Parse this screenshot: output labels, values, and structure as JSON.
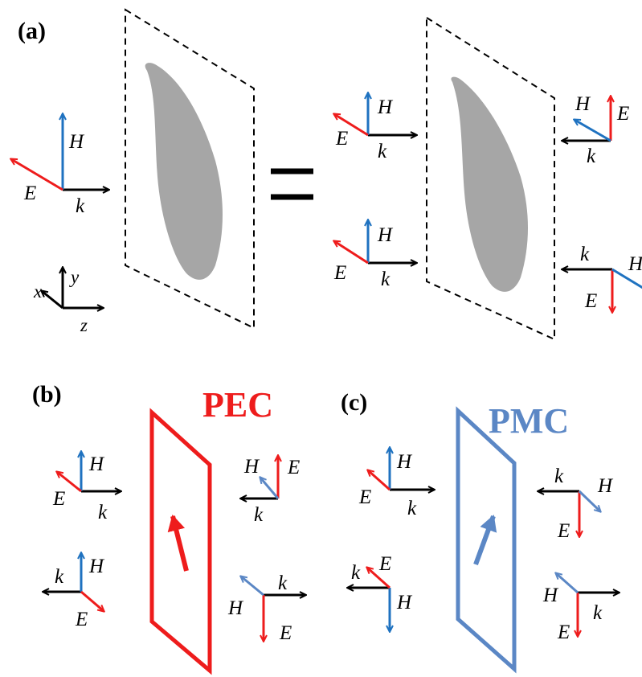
{
  "colors": {
    "black": "#000000",
    "red": "#ee1c1c",
    "blue": "#1f72c0",
    "light_blue": "#5b87c5",
    "gray_shape": "#a6a6a6",
    "pec": "#ee1c1c",
    "pmc": "#5b87c5"
  },
  "panels": {
    "a": "(a)",
    "b": "(b)",
    "c": "(c)"
  },
  "labels": {
    "E": "E",
    "H": "H",
    "k": "k",
    "x": "x",
    "y": "y",
    "z": "z"
  },
  "materials": {
    "pec": "PEC",
    "pmc": "PMC"
  }
}
